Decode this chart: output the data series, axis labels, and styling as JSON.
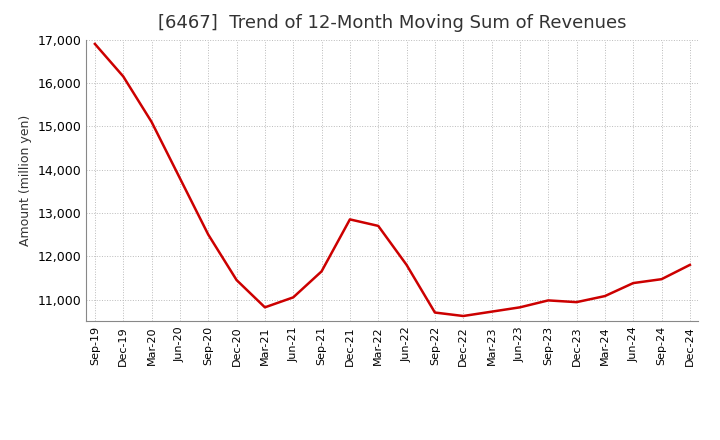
{
  "title": "[6467]  Trend of 12-Month Moving Sum of Revenues",
  "ylabel": "Amount (million yen)",
  "background_color": "#ffffff",
  "plot_bg_color": "#ffffff",
  "line_color": "#cc0000",
  "grid_color": "#bbbbbb",
  "grid_linestyle": ":",
  "x_labels": [
    "Sep-19",
    "Dec-19",
    "Mar-20",
    "Jun-20",
    "Sep-20",
    "Dec-20",
    "Mar-21",
    "Jun-21",
    "Sep-21",
    "Dec-21",
    "Mar-22",
    "Jun-22",
    "Sep-22",
    "Dec-22",
    "Mar-23",
    "Jun-23",
    "Sep-23",
    "Dec-23",
    "Mar-24",
    "Jun-24",
    "Sep-24",
    "Dec-24"
  ],
  "values": [
    16900,
    16150,
    15100,
    13800,
    12500,
    11450,
    10820,
    11050,
    11650,
    12850,
    12700,
    11800,
    10700,
    10620,
    10720,
    10820,
    10980,
    10940,
    11080,
    11380,
    11470,
    11800
  ],
  "ylim_min": 10500,
  "ylim_max": 17000,
  "yticks": [
    11000,
    12000,
    13000,
    14000,
    15000,
    16000,
    17000
  ],
  "title_fontsize": 13,
  "title_color": "#333333",
  "ylabel_fontsize": 9,
  "tick_fontsize": 9,
  "xtick_fontsize": 8
}
